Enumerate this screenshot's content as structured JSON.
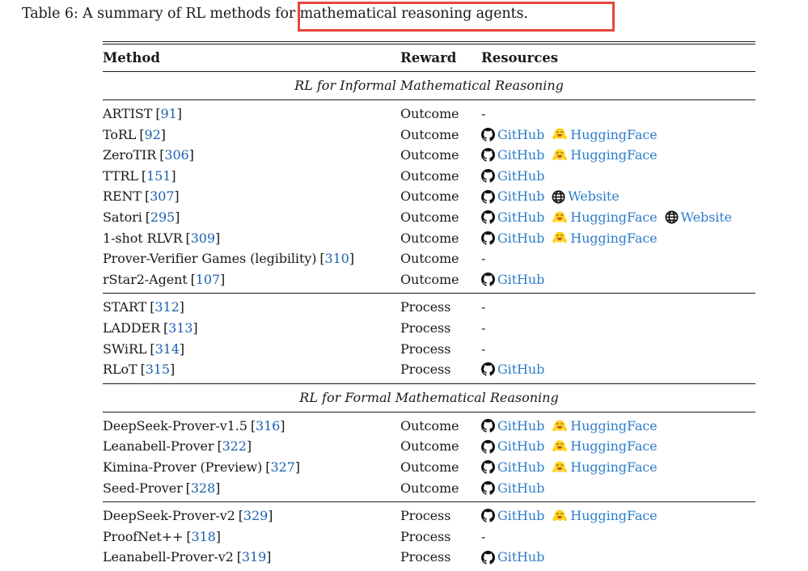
{
  "caption": {
    "text": "Table 6: A summary of RL methods for mathematical reasoning agents."
  },
  "annotation": {
    "shape": "rectangle",
    "color": "#e8473c"
  },
  "table": {
    "columns": [
      "Method",
      "Reward",
      "Resources"
    ],
    "cite_brackets": [
      "[",
      "]"
    ],
    "empty_marker": "-",
    "colors": {
      "cite_blue": "#1b61af",
      "link_blue": "#2e7dc9",
      "rule_black": "#1a1a1a"
    },
    "icons": {
      "github": "github-icon",
      "huggingface": "huggingface-icon",
      "website": "globe-icon"
    },
    "sections": [
      {
        "title": "RL for Informal Mathematical Reasoning",
        "groups": [
          {
            "rows": [
              {
                "method": "ARTIST",
                "cite": "91",
                "reward": "Outcome",
                "resources": []
              },
              {
                "method": "ToRL",
                "cite": "92",
                "reward": "Outcome",
                "resources": [
                  {
                    "type": "github",
                    "label": "GitHub"
                  },
                  {
                    "type": "huggingface",
                    "label": "HuggingFace"
                  }
                ]
              },
              {
                "method": "ZeroTIR",
                "cite": "306",
                "reward": "Outcome",
                "resources": [
                  {
                    "type": "github",
                    "label": "GitHub"
                  },
                  {
                    "type": "huggingface",
                    "label": "HuggingFace"
                  }
                ]
              },
              {
                "method": "TTRL",
                "cite": "151",
                "reward": "Outcome",
                "resources": [
                  {
                    "type": "github",
                    "label": "GitHub"
                  }
                ]
              },
              {
                "method": "RENT",
                "cite": "307",
                "reward": "Outcome",
                "resources": [
                  {
                    "type": "github",
                    "label": "GitHub"
                  },
                  {
                    "type": "website",
                    "label": "Website"
                  }
                ]
              },
              {
                "method": "Satori",
                "cite": "295",
                "reward": "Outcome",
                "resources": [
                  {
                    "type": "github",
                    "label": "GitHub"
                  },
                  {
                    "type": "huggingface",
                    "label": "HuggingFace"
                  },
                  {
                    "type": "website",
                    "label": "Website"
                  }
                ]
              },
              {
                "method": "1-shot RLVR",
                "cite": "309",
                "reward": "Outcome",
                "resources": [
                  {
                    "type": "github",
                    "label": "GitHub"
                  },
                  {
                    "type": "huggingface",
                    "label": "HuggingFace"
                  }
                ]
              },
              {
                "method": "Prover-Verifier Games (legibility)",
                "cite": "310",
                "reward": "Outcome",
                "resources": []
              },
              {
                "method": "rStar2-Agent",
                "cite": "107",
                "reward": "Outcome",
                "resources": [
                  {
                    "type": "github",
                    "label": "GitHub"
                  }
                ]
              }
            ]
          },
          {
            "rows": [
              {
                "method": "START",
                "cite": "312",
                "reward": "Process",
                "resources": []
              },
              {
                "method": "LADDER",
                "cite": "313",
                "reward": "Process",
                "resources": []
              },
              {
                "method": "SWiRL",
                "cite": "314",
                "reward": "Process",
                "resources": []
              },
              {
                "method": "RLoT",
                "cite": "315",
                "reward": "Process",
                "resources": [
                  {
                    "type": "github",
                    "label": "GitHub"
                  }
                ]
              }
            ]
          }
        ]
      },
      {
        "title": "RL for Formal Mathematical Reasoning",
        "groups": [
          {
            "rows": [
              {
                "method": "DeepSeek-Prover-v1.5",
                "cite": "316",
                "reward": "Outcome",
                "resources": [
                  {
                    "type": "github",
                    "label": "GitHub"
                  },
                  {
                    "type": "huggingface",
                    "label": "HuggingFace"
                  }
                ]
              },
              {
                "method": "Leanabell-Prover",
                "cite": "322",
                "reward": "Outcome",
                "resources": [
                  {
                    "type": "github",
                    "label": "GitHub"
                  },
                  {
                    "type": "huggingface",
                    "label": "HuggingFace"
                  }
                ]
              },
              {
                "method": "Kimina-Prover (Preview)",
                "cite": "327",
                "reward": "Outcome",
                "resources": [
                  {
                    "type": "github",
                    "label": "GitHub"
                  },
                  {
                    "type": "huggingface",
                    "label": "HuggingFace"
                  }
                ]
              },
              {
                "method": "Seed-Prover",
                "cite": "328",
                "reward": "Outcome",
                "resources": [
                  {
                    "type": "github",
                    "label": "GitHub"
                  }
                ]
              }
            ]
          },
          {
            "rows": [
              {
                "method": "DeepSeek-Prover-v2",
                "cite": "329",
                "reward": "Process",
                "resources": [
                  {
                    "type": "github",
                    "label": "GitHub"
                  },
                  {
                    "type": "huggingface",
                    "label": "HuggingFace"
                  }
                ]
              },
              {
                "method": "ProofNet++",
                "cite": "318",
                "reward": "Process",
                "resources": []
              },
              {
                "method": "Leanabell-Prover-v2",
                "cite": "319",
                "reward": "Process",
                "resources": [
                  {
                    "type": "github",
                    "label": "GitHub"
                  }
                ]
              }
            ]
          }
        ]
      }
    ]
  }
}
